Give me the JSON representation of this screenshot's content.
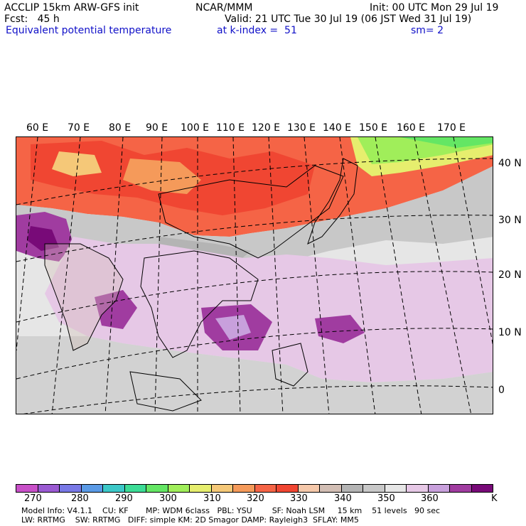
{
  "header": {
    "line1_left": "ACCLIP 15km ARW-GFS init",
    "line1_mid": "NCAR/MMM",
    "line1_right": "Init: 00 UTC Mon 29 Jul 19",
    "line2_left": "Fcst:   45 h",
    "line2_right": "Valid: 21 UTC Tue 30 Jul 19 (06 JST Wed 31 Jul 19)",
    "line3_left": "Equivalent potential temperature",
    "line3_mid": "at k-index =  51",
    "line3_right": "sm= 2"
  },
  "map": {
    "longitude_labels": [
      "60 E",
      "70 E",
      "80 E",
      "90 E",
      "100 E",
      "110 E",
      "120 E",
      "130 E",
      "140 E",
      "150 E",
      "160 E",
      "170 E"
    ],
    "latitude_labels": [
      "40 N",
      "30 N",
      "20 N",
      "10 N",
      "0"
    ]
  },
  "colorbar": {
    "unit": "K",
    "tick_labels": [
      "270",
      "280",
      "290",
      "300",
      "310",
      "320",
      "330",
      "340",
      "350",
      "360"
    ],
    "colors": [
      "#c850c8",
      "#9a5ad2",
      "#7878e6",
      "#5a9ae6",
      "#3cc8c8",
      "#3cdc96",
      "#64e664",
      "#a0ee5a",
      "#e6ee6e",
      "#f5c878",
      "#f59a5a",
      "#f56446",
      "#f04632",
      "#f5c8aa",
      "#d2beb4",
      "#b4b4b4",
      "#c8c8c8",
      "#e6e6e6",
      "#e6c8e6",
      "#c8a0dc",
      "#a03ca0",
      "#780a78"
    ]
  },
  "footer": {
    "line1": "Model Info: V4.1.1    CU: KF       MP: WDM 6class   PBL: YSU        SF: Noah LSM     15 km    51 levels   90 sec",
    "line2": "LW: RRTMG    SW: RRTMG   DIFF: simple KM: 2D Smagor DAMP: Rayleigh3  SFLAY: MM5"
  }
}
